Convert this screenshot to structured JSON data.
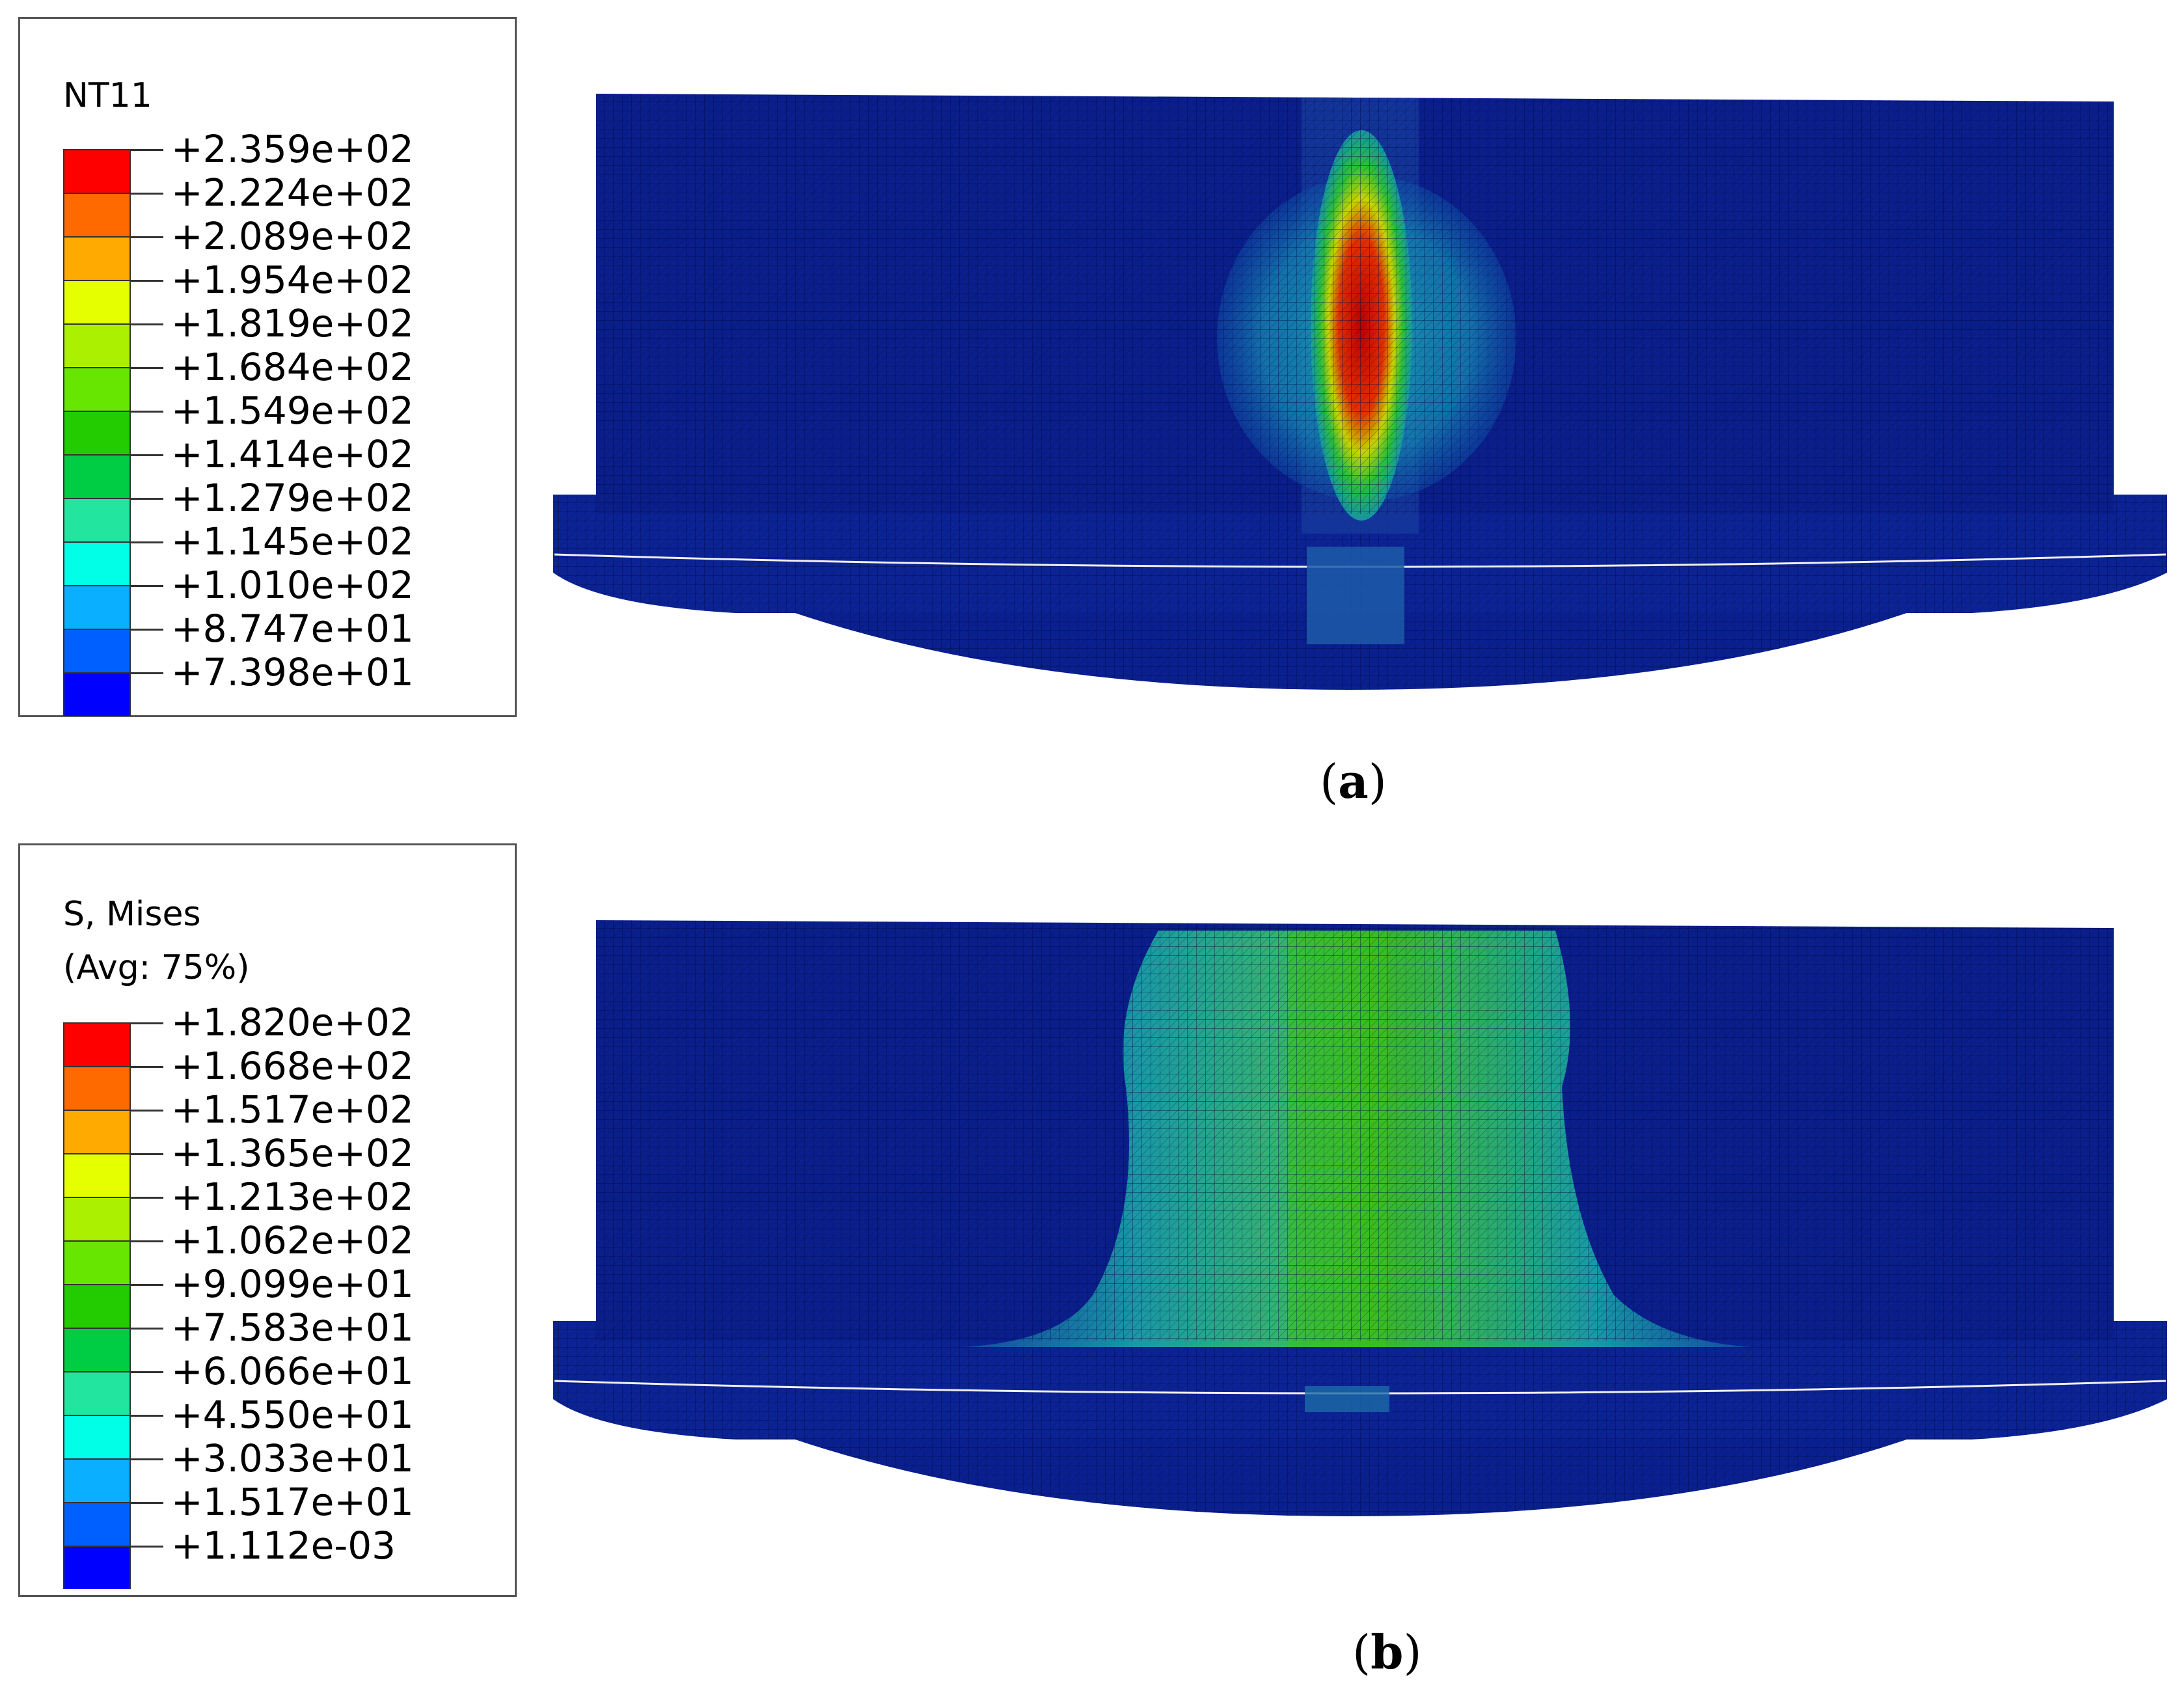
{
  "legend_a": {
    "title": "NT11",
    "values": [
      "+2.359e+02",
      "+2.224e+02",
      "+2.089e+02",
      "+1.954e+02",
      "+1.819e+02",
      "+1.684e+02",
      "+1.549e+02",
      "+1.414e+02",
      "+1.279e+02",
      "+1.145e+02",
      "+1.010e+02",
      "+8.747e+01",
      "+7.398e+01"
    ]
  },
  "legend_b": {
    "title_line1": "S, Mises",
    "title_line2": "(Avg: 75%)",
    "values": [
      "+1.820e+02",
      "+1.668e+02",
      "+1.517e+02",
      "+1.365e+02",
      "+1.213e+02",
      "+1.062e+02",
      "+9.099e+01",
      "+7.583e+01",
      "+6.066e+01",
      "+4.550e+01",
      "+3.033e+01",
      "+1.517e+01",
      "+1.112e-03"
    ]
  },
  "colormap": [
    "#ff0000",
    "#ff6a00",
    "#ffaa00",
    "#e6ff00",
    "#aaf000",
    "#66e600",
    "#22cc00",
    "#00cc44",
    "#22e6a0",
    "#00ffe6",
    "#0ab0ff",
    "#0060ff",
    "#0000ff"
  ],
  "model_base_color": "#0a1e8c",
  "caption_a_letter": "a",
  "caption_b_letter": "b"
}
